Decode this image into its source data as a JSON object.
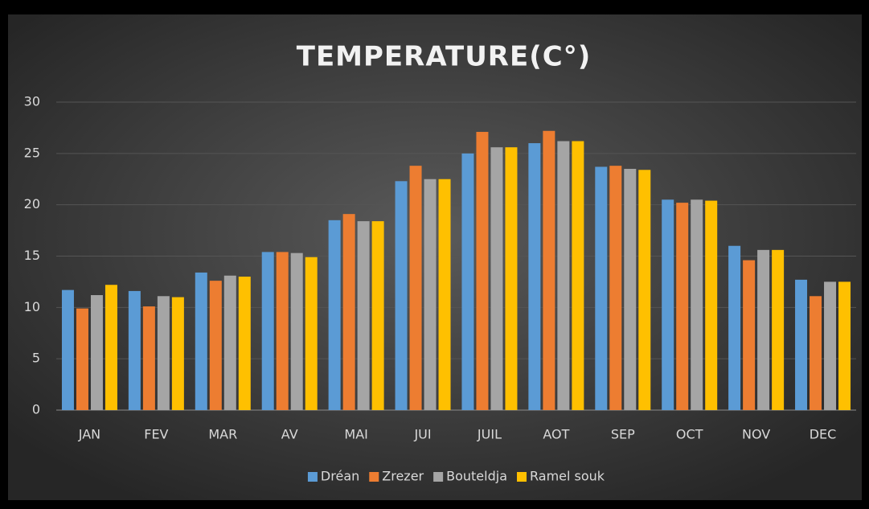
{
  "chart_data": {
    "type": "bar",
    "title": "TEMPERATURE(C°)",
    "categories": [
      "JAN",
      "FEV",
      "MAR",
      "AV",
      "MAI",
      "JUI",
      "JUIL",
      "AOT",
      "SEP",
      "OCT",
      "NOV",
      "DEC"
    ],
    "series": [
      {
        "name": "Dréan",
        "color": "#5b9bd5",
        "values": [
          11.7,
          11.6,
          13.4,
          15.4,
          18.5,
          22.3,
          25.0,
          26.0,
          23.7,
          20.5,
          16.0,
          12.7
        ]
      },
      {
        "name": "Zrezer",
        "color": "#ed7d31",
        "values": [
          9.9,
          10.1,
          12.6,
          15.4,
          19.1,
          23.8,
          27.1,
          27.2,
          23.8,
          20.2,
          14.6,
          11.1
        ]
      },
      {
        "name": "Bouteldja",
        "color": "#a5a5a5",
        "values": [
          11.2,
          11.1,
          13.1,
          15.3,
          18.4,
          22.5,
          25.6,
          26.2,
          23.5,
          20.5,
          15.6,
          12.5
        ]
      },
      {
        "name": "Ramel souk",
        "color": "#ffc000",
        "values": [
          12.2,
          11.0,
          13.0,
          14.9,
          18.4,
          22.5,
          25.6,
          26.2,
          23.4,
          20.4,
          15.6,
          12.5
        ]
      }
    ],
    "ylim": [
      0,
      30
    ],
    "yticks": [
      0,
      5,
      10,
      15,
      20,
      25,
      30
    ],
    "grid": true,
    "legend": "bottom"
  }
}
